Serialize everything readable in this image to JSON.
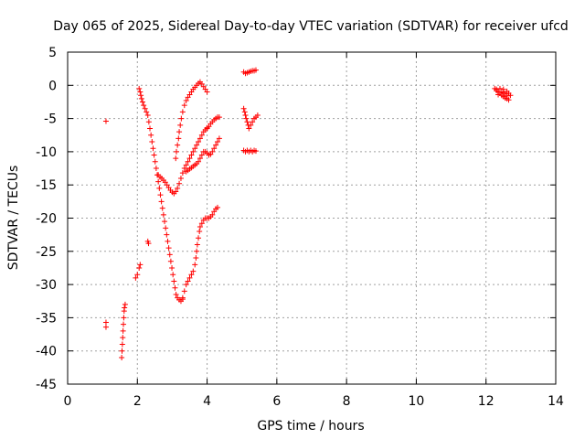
{
  "chart_data": {
    "type": "scatter",
    "title": "Day 065 of 2025, Sidereal Day-to-day VTEC variation (SDTVAR) for receiver ufcd",
    "xlabel": "GPS time / hours",
    "ylabel": "SDTVAR / TECUs",
    "xlim": [
      0,
      14
    ],
    "ylim": [
      -45,
      5
    ],
    "xticks": [
      "0",
      "2",
      "4",
      "6",
      "8",
      "10",
      "12",
      "14"
    ],
    "yticks": [
      "5",
      "0",
      "-5",
      "-10",
      "-15",
      "-20",
      "-25",
      "-30",
      "-35",
      "-40",
      "-45"
    ],
    "grid": true,
    "marker": "+",
    "marker_color": "#ff0000",
    "series": [
      {
        "points": [
          [
            1.1,
            -5.4
          ],
          [
            1.1,
            -35.7
          ],
          [
            1.1,
            -36.4
          ],
          [
            1.55,
            -41.0
          ],
          [
            1.56,
            -40.0
          ],
          [
            1.57,
            -39.0
          ],
          [
            1.58,
            -38.0
          ],
          [
            1.59,
            -37.0
          ],
          [
            1.6,
            -36.0
          ],
          [
            1.61,
            -35.0
          ],
          [
            1.62,
            -34.0
          ],
          [
            1.63,
            -33.5
          ],
          [
            1.65,
            -33.0
          ],
          [
            1.95,
            -29.0
          ],
          [
            2.0,
            -28.5
          ],
          [
            2.05,
            -27.5
          ],
          [
            2.08,
            -27.0
          ],
          [
            2.3,
            -23.5
          ],
          [
            2.32,
            -23.8
          ],
          [
            2.05,
            -0.5
          ],
          [
            2.08,
            -1.0
          ],
          [
            2.1,
            -1.5
          ],
          [
            2.12,
            -2.0
          ],
          [
            2.15,
            -2.5
          ],
          [
            2.18,
            -3.0
          ],
          [
            2.22,
            -3.5
          ],
          [
            2.26,
            -4.0
          ],
          [
            2.3,
            -4.5
          ],
          [
            2.33,
            -5.5
          ],
          [
            2.36,
            -6.5
          ],
          [
            2.39,
            -7.5
          ],
          [
            2.42,
            -8.5
          ],
          [
            2.45,
            -9.5
          ],
          [
            2.48,
            -10.5
          ],
          [
            2.51,
            -11.5
          ],
          [
            2.54,
            -12.5
          ],
          [
            2.57,
            -13.5
          ],
          [
            2.6,
            -14.5
          ],
          [
            2.63,
            -15.5
          ],
          [
            2.66,
            -16.5
          ],
          [
            2.69,
            -17.5
          ],
          [
            2.72,
            -18.5
          ],
          [
            2.75,
            -19.5
          ],
          [
            2.78,
            -20.5
          ],
          [
            2.81,
            -21.5
          ],
          [
            2.84,
            -22.5
          ],
          [
            2.87,
            -23.5
          ],
          [
            2.9,
            -24.5
          ],
          [
            2.93,
            -25.5
          ],
          [
            2.96,
            -26.5
          ],
          [
            2.99,
            -27.5
          ],
          [
            3.02,
            -28.5
          ],
          [
            3.05,
            -29.5
          ],
          [
            3.08,
            -30.5
          ],
          [
            3.11,
            -31.5
          ],
          [
            3.15,
            -32.0
          ],
          [
            3.2,
            -32.3
          ],
          [
            3.25,
            -32.5
          ],
          [
            3.3,
            -32.2
          ],
          [
            2.6,
            -13.5
          ],
          [
            2.65,
            -13.8
          ],
          [
            2.7,
            -14.0
          ],
          [
            2.75,
            -14.3
          ],
          [
            2.8,
            -14.6
          ],
          [
            2.85,
            -15.0
          ],
          [
            2.9,
            -15.4
          ],
          [
            2.95,
            -15.8
          ],
          [
            3.0,
            -16.1
          ],
          [
            3.05,
            -16.3
          ],
          [
            3.1,
            -16.0
          ],
          [
            3.15,
            -15.5
          ],
          [
            3.2,
            -14.8
          ],
          [
            3.25,
            -14.0
          ],
          [
            3.3,
            -13.2
          ],
          [
            3.35,
            -12.5
          ],
          [
            3.4,
            -12.0
          ],
          [
            3.45,
            -11.5
          ],
          [
            3.5,
            -11.0
          ],
          [
            3.55,
            -10.5
          ],
          [
            3.6,
            -10.0
          ],
          [
            3.65,
            -9.5
          ],
          [
            3.7,
            -9.0
          ],
          [
            3.75,
            -8.5
          ],
          [
            3.8,
            -8.0
          ],
          [
            3.85,
            -7.5
          ],
          [
            3.9,
            -7.0
          ],
          [
            3.95,
            -6.7
          ],
          [
            4.0,
            -6.4
          ],
          [
            3.1,
            -11.0
          ],
          [
            3.12,
            -10.0
          ],
          [
            3.15,
            -9.0
          ],
          [
            3.18,
            -8.0
          ],
          [
            3.2,
            -7.0
          ],
          [
            3.23,
            -6.0
          ],
          [
            3.26,
            -5.0
          ],
          [
            3.3,
            -4.0
          ],
          [
            3.35,
            -3.0
          ],
          [
            3.4,
            -2.3
          ],
          [
            3.45,
            -1.8
          ],
          [
            3.5,
            -1.4
          ],
          [
            3.55,
            -1.0
          ],
          [
            3.6,
            -0.6
          ],
          [
            3.65,
            -0.3
          ],
          [
            3.7,
            0.0
          ],
          [
            3.75,
            0.3
          ],
          [
            3.8,
            0.5
          ],
          [
            3.85,
            0.2
          ],
          [
            3.9,
            -0.2
          ],
          [
            3.95,
            -0.6
          ],
          [
            4.0,
            -1.0
          ],
          [
            3.3,
            -32.0
          ],
          [
            3.35,
            -31.0
          ],
          [
            3.4,
            -30.0
          ],
          [
            3.45,
            -29.5
          ],
          [
            3.5,
            -29.0
          ],
          [
            3.55,
            -28.5
          ],
          [
            3.6,
            -28.0
          ],
          [
            3.65,
            -27.0
          ],
          [
            3.68,
            -26.0
          ],
          [
            3.7,
            -25.0
          ],
          [
            3.72,
            -24.0
          ],
          [
            3.75,
            -23.0
          ],
          [
            3.78,
            -22.0
          ],
          [
            3.8,
            -21.3
          ],
          [
            3.85,
            -20.8
          ],
          [
            3.9,
            -20.3
          ],
          [
            3.95,
            -20.0
          ],
          [
            4.0,
            -20.0
          ],
          [
            4.05,
            -20.0
          ],
          [
            4.1,
            -19.8
          ],
          [
            4.15,
            -19.5
          ],
          [
            4.2,
            -19.0
          ],
          [
            4.25,
            -18.6
          ],
          [
            4.3,
            -18.4
          ],
          [
            3.4,
            -13.0
          ],
          [
            3.45,
            -12.8
          ],
          [
            3.5,
            -12.6
          ],
          [
            3.55,
            -12.4
          ],
          [
            3.6,
            -12.2
          ],
          [
            3.65,
            -12.0
          ],
          [
            3.7,
            -11.8
          ],
          [
            3.75,
            -11.5
          ],
          [
            3.8,
            -11.0
          ],
          [
            3.85,
            -10.5
          ],
          [
            3.9,
            -10.0
          ],
          [
            3.95,
            -10.0
          ],
          [
            4.0,
            -10.2
          ],
          [
            4.05,
            -10.5
          ],
          [
            4.1,
            -10.4
          ],
          [
            4.15,
            -10.0
          ],
          [
            4.2,
            -9.5
          ],
          [
            4.25,
            -9.0
          ],
          [
            4.3,
            -8.5
          ],
          [
            4.35,
            -8.0
          ],
          [
            4.0,
            -6.5
          ],
          [
            4.05,
            -6.2
          ],
          [
            4.1,
            -5.8
          ],
          [
            4.15,
            -5.5
          ],
          [
            4.2,
            -5.2
          ],
          [
            4.25,
            -5.0
          ],
          [
            4.3,
            -4.8
          ],
          [
            4.35,
            -4.8
          ],
          [
            5.05,
            2.0
          ],
          [
            5.1,
            1.8
          ],
          [
            5.15,
            1.9
          ],
          [
            5.2,
            2.0
          ],
          [
            5.25,
            2.1
          ],
          [
            5.3,
            2.2
          ],
          [
            5.35,
            2.2
          ],
          [
            5.4,
            2.3
          ],
          [
            5.05,
            -3.5
          ],
          [
            5.08,
            -4.0
          ],
          [
            5.1,
            -4.5
          ],
          [
            5.12,
            -5.0
          ],
          [
            5.15,
            -5.5
          ],
          [
            5.18,
            -6.0
          ],
          [
            5.2,
            -6.5
          ],
          [
            5.25,
            -6.0
          ],
          [
            5.3,
            -5.5
          ],
          [
            5.35,
            -5.0
          ],
          [
            5.4,
            -4.8
          ],
          [
            5.45,
            -4.5
          ],
          [
            5.05,
            -9.8
          ],
          [
            5.1,
            -10.0
          ],
          [
            5.15,
            -9.8
          ],
          [
            5.2,
            -10.0
          ],
          [
            5.25,
            -9.8
          ],
          [
            5.3,
            -10.0
          ],
          [
            5.35,
            -9.8
          ],
          [
            5.4,
            -9.9
          ],
          [
            12.25,
            -0.5
          ],
          [
            12.3,
            -0.8
          ],
          [
            12.35,
            -1.0
          ],
          [
            12.4,
            -1.2
          ],
          [
            12.45,
            -1.5
          ],
          [
            12.5,
            -1.7
          ],
          [
            12.55,
            -1.9
          ],
          [
            12.6,
            -2.0
          ],
          [
            12.65,
            -2.2
          ],
          [
            12.3,
            -0.6
          ],
          [
            12.4,
            -0.5
          ],
          [
            12.5,
            -0.6
          ],
          [
            12.6,
            -0.9
          ],
          [
            12.65,
            -1.2
          ],
          [
            12.7,
            -1.5
          ],
          [
            12.45,
            -1.0
          ],
          [
            12.55,
            -1.3
          ],
          [
            12.35,
            -1.4
          ],
          [
            12.5,
            -1.1
          ],
          [
            12.6,
            -1.6
          ]
        ]
      }
    ]
  }
}
